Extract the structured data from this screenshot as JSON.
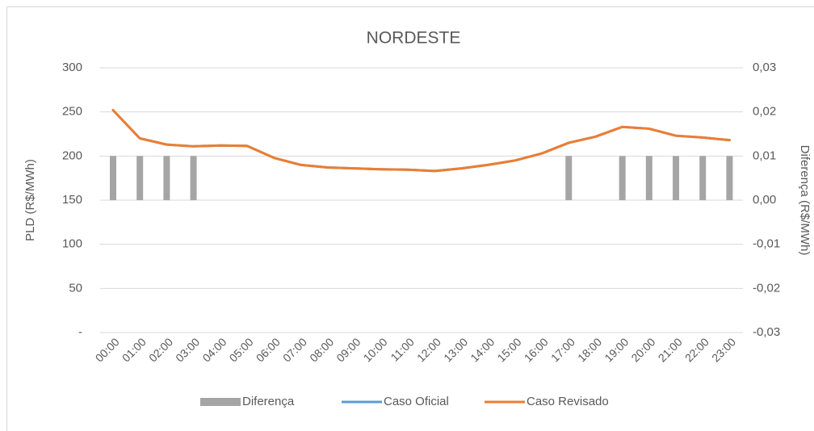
{
  "chart_data": {
    "type": "combo",
    "title": "NORDESTE",
    "y_label": "PLD (R$/MWh)",
    "y2_label": "Diferença (R$/MWh)",
    "categories": [
      "00:00",
      "01:00",
      "02:00",
      "03:00",
      "04:00",
      "05:00",
      "06:00",
      "07:00",
      "08:00",
      "09:00",
      "10:00",
      "11:00",
      "12:00",
      "13:00",
      "14:00",
      "15:00",
      "16:00",
      "17:00",
      "18:00",
      "19:00",
      "20:00",
      "21:00",
      "22:00",
      "23:00"
    ],
    "series": [
      {
        "name": "Diferença",
        "type": "bar",
        "axis": "y2",
        "color": "#a5a5a5",
        "values": [
          0.01,
          0.01,
          0.01,
          0.01,
          0,
          0,
          0,
          0,
          0,
          0,
          0,
          0,
          0,
          0,
          0,
          0,
          0,
          0.01,
          0,
          0.01,
          0.01,
          0.01,
          0.01,
          0.01
        ]
      },
      {
        "name": "Caso Oficial",
        "type": "line",
        "color": "#5b9bd5",
        "values": [
          252,
          220,
          213,
          211,
          212,
          211.5,
          198,
          190,
          187,
          186,
          185,
          184.5,
          183,
          186,
          190,
          195,
          203,
          215,
          222,
          233,
          231,
          223,
          221,
          218
        ]
      },
      {
        "name": "Caso Revisado",
        "type": "line",
        "color": "#ed7d31",
        "values": [
          252,
          220,
          213,
          211,
          212,
          211.5,
          198,
          190,
          187,
          186,
          185,
          184.5,
          183,
          186,
          190,
          195,
          203,
          215,
          222,
          233,
          231,
          223,
          221,
          218
        ]
      }
    ],
    "ylim": [
      0,
      300
    ],
    "yticks": [
      {
        "value": 0,
        "label": "-"
      },
      50,
      100,
      150,
      200,
      250,
      300
    ],
    "y2lim": [
      -0.03,
      0.03
    ],
    "y2ticks": [
      {
        "value": -0.03,
        "label": "-0,03"
      },
      {
        "value": -0.02,
        "label": "-0,02"
      },
      {
        "value": -0.01,
        "label": "-0,01"
      },
      {
        "value": 0,
        "label": "0,00"
      },
      {
        "value": 0.01,
        "label": "0,01"
      },
      {
        "value": 0.02,
        "label": "0,02"
      },
      {
        "value": 0.03,
        "label": "0,03"
      }
    ],
    "grid": true,
    "legend": "bottom"
  }
}
